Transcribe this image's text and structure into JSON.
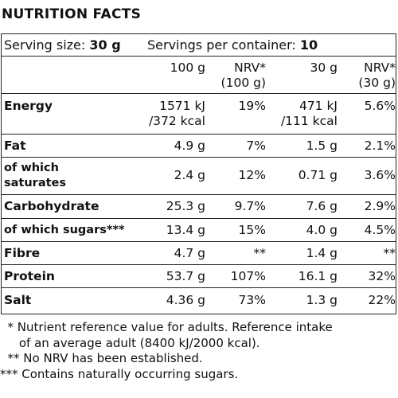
{
  "title": "NUTRITION FACTS",
  "serving": {
    "label": "Serving size:",
    "value": "30 g",
    "containers_label": "Servings per container:",
    "containers_value": "10"
  },
  "columns": {
    "per100": "100 g",
    "nrv100_a": "NRV*",
    "nrv100_b": "(100 g)",
    "per30": "30 g",
    "nrv30_a": "NRV*",
    "nrv30_b": "(30 g)"
  },
  "rows": [
    {
      "label_a": "Energy",
      "label_b": "",
      "v100_a": "1571 kJ",
      "v100_b": "/372 kcal",
      "nrv100": "19%",
      "v30_a": "471 kJ",
      "v30_b": "/111 kcal",
      "nrv30": "5.6%"
    },
    {
      "label_a": "Fat",
      "label_b": "",
      "v100_a": "4.9 g",
      "nrv100": "7%",
      "v30_a": "1.5 g",
      "nrv30": "2.1%"
    },
    {
      "label_a": "of which",
      "label_b": "saturates",
      "v100_a": "2.4 g",
      "nrv100": "12%",
      "v30_a": "0.71 g",
      "nrv30": "3.6%"
    },
    {
      "label_a": "Carbohydrate",
      "label_b": "",
      "v100_a": "25.3 g",
      "nrv100": "9.7%",
      "v30_a": "7.6 g",
      "nrv30": "2.9%"
    },
    {
      "label_a": "of which sugars***",
      "label_b": "",
      "v100_a": "13.4 g",
      "nrv100": "15%",
      "v30_a": "4.0 g",
      "nrv30": "4.5%"
    },
    {
      "label_a": "Fibre",
      "label_b": "",
      "v100_a": "4.7 g",
      "nrv100": "**",
      "v30_a": "1.4 g",
      "nrv30": "**"
    },
    {
      "label_a": "Protein",
      "label_b": "",
      "v100_a": "53.7 g",
      "nrv100": "107%",
      "v30_a": "16.1 g",
      "nrv30": "32%"
    },
    {
      "label_a": "Salt",
      "label_b": "",
      "v100_a": "4.36 g",
      "nrv100": "73%",
      "v30_a": "1.3 g",
      "nrv30": "22%"
    }
  ],
  "footnotes": [
    "  * Nutrient reference value for adults. Reference intake",
    "     of an average adult (8400 kJ/2000 kcal).",
    "  ** No NRV has been established.",
    "*** Contains naturally occurring sugars."
  ]
}
